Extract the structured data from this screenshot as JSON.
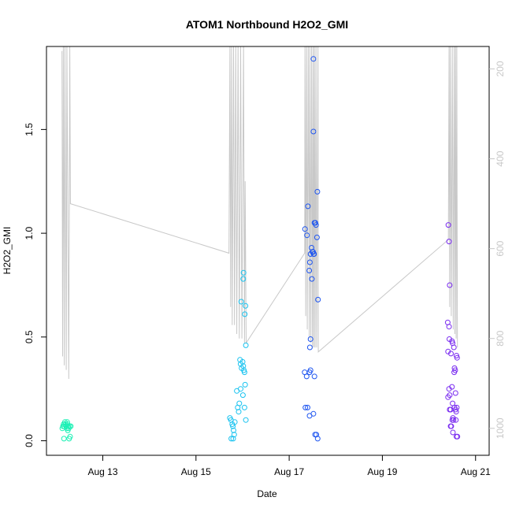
{
  "chart_data": {
    "type": "scatter",
    "title": "ATOM1 Northbound H2O2_GMI",
    "xlabel": "Date",
    "ylabel": "H2O2_GMI",
    "x_ticks": [
      "Aug 13",
      "Aug 15",
      "Aug 17",
      "Aug 19",
      "Aug 21"
    ],
    "y_ticks": [
      "0.0",
      "0.5",
      "1.0",
      "1.5"
    ],
    "y_right_ticks": [
      "200",
      "400",
      "600",
      "800",
      "1000"
    ],
    "xlim": [
      "2016-08-11T19:00",
      "2016-08-21T07:00"
    ],
    "ylim": [
      -0.07,
      1.9
    ],
    "y_right_lim": [
      1060,
      150
    ],
    "grid": false,
    "colors": {
      "cluster1": "#19f0b4",
      "cluster2": "#19c3f0",
      "cluster3": "#1e55f0",
      "cluster4": "#7a2cf0",
      "altitude_line": "#c8c8c8"
    },
    "series": [
      {
        "color": "cluster1",
        "points": [
          [
            "2016-08-12T03:10",
            0.06
          ],
          [
            "2016-08-12T03:30",
            0.07
          ],
          [
            "2016-08-12T03:50",
            0.08
          ],
          [
            "2016-08-12T04:10",
            0.07
          ],
          [
            "2016-08-12T04:30",
            0.09
          ],
          [
            "2016-08-12T04:50",
            0.08
          ],
          [
            "2016-08-12T05:10",
            0.07
          ],
          [
            "2016-08-12T05:30",
            0.06
          ],
          [
            "2016-08-12T05:50",
            0.08
          ],
          [
            "2016-08-12T06:10",
            0.07
          ],
          [
            "2016-08-12T06:30",
            0.06
          ],
          [
            "2016-08-12T06:50",
            0.07
          ],
          [
            "2016-08-12T07:10",
            0.02
          ],
          [
            "2016-08-12T04:00",
            0.01
          ],
          [
            "2016-08-12T06:40",
            0.01
          ],
          [
            "2016-08-12T05:40",
            0.09
          ],
          [
            "2016-08-12T06:00",
            0.05
          ],
          [
            "2016-08-12T07:30",
            0.07
          ]
        ]
      },
      {
        "color": "cluster2",
        "points": [
          [
            "2016-08-15T17:30",
            0.11
          ],
          [
            "2016-08-15T18:00",
            0.1
          ],
          [
            "2016-08-15T18:40",
            0.08
          ],
          [
            "2016-08-15T19:00",
            0.07
          ],
          [
            "2016-08-15T19:20",
            0.05
          ],
          [
            "2016-08-15T19:40",
            0.03
          ],
          [
            "2016-08-15T18:10",
            0.01
          ],
          [
            "2016-08-15T19:10",
            0.01
          ],
          [
            "2016-08-15T20:00",
            0.09
          ],
          [
            "2016-08-15T21:00",
            0.24
          ],
          [
            "2016-08-15T21:30",
            0.16
          ],
          [
            "2016-08-15T22:00",
            0.14
          ],
          [
            "2016-08-15T22:20",
            0.18
          ],
          [
            "2016-08-15T23:00",
            0.25
          ],
          [
            "2016-08-15T23:30",
            0.35
          ],
          [
            "2016-08-15T23:00",
            0.37
          ],
          [
            "2016-08-15T22:40",
            0.39
          ],
          [
            "2016-08-16T00:00",
            0.38
          ],
          [
            "2016-08-16T00:20",
            0.36
          ],
          [
            "2016-08-16T00:40",
            0.34
          ],
          [
            "2016-08-16T01:00",
            0.33
          ],
          [
            "2016-08-16T01:20",
            0.27
          ],
          [
            "2016-08-16T01:00",
            0.16
          ],
          [
            "2016-08-16T01:40",
            0.1
          ],
          [
            "2016-08-16T00:10",
            0.22
          ],
          [
            "2016-08-15T23:20",
            0.67
          ],
          [
            "2016-08-16T00:20",
            0.78
          ],
          [
            "2016-08-16T00:30",
            0.81
          ],
          [
            "2016-08-16T01:30",
            0.65
          ],
          [
            "2016-08-16T01:10",
            0.61
          ],
          [
            "2016-08-16T01:40",
            0.46
          ]
        ]
      },
      {
        "color": "cluster3",
        "points": [
          [
            "2016-08-17T08:10",
            1.02
          ],
          [
            "2016-08-17T09:10",
            0.99
          ],
          [
            "2016-08-17T09:40",
            1.13
          ],
          [
            "2016-08-17T10:20",
            0.82
          ],
          [
            "2016-08-17T10:40",
            0.86
          ],
          [
            "2016-08-17T11:00",
            0.9
          ],
          [
            "2016-08-17T11:30",
            0.93
          ],
          [
            "2016-08-17T12:00",
            0.91
          ],
          [
            "2016-08-17T12:20",
            0.91
          ],
          [
            "2016-08-17T12:40",
            0.9
          ],
          [
            "2016-08-17T12:50",
            0.9
          ],
          [
            "2016-08-17T13:00",
            1.05
          ],
          [
            "2016-08-17T13:30",
            1.05
          ],
          [
            "2016-08-17T13:50",
            1.04
          ],
          [
            "2016-08-17T14:20",
            0.98
          ],
          [
            "2016-08-17T14:30",
            1.2
          ],
          [
            "2016-08-17T14:50",
            0.68
          ],
          [
            "2016-08-17T11:40",
            0.78
          ],
          [
            "2016-08-17T12:30",
            1.49
          ],
          [
            "2016-08-17T12:30",
            1.84
          ],
          [
            "2016-08-17T11:00",
            0.49
          ],
          [
            "2016-08-17T10:40",
            0.45
          ],
          [
            "2016-08-17T08:00",
            0.33
          ],
          [
            "2016-08-17T09:00",
            0.31
          ],
          [
            "2016-08-17T10:30",
            0.33
          ],
          [
            "2016-08-17T11:00",
            0.34
          ],
          [
            "2016-08-17T13:00",
            0.31
          ],
          [
            "2016-08-17T08:20",
            0.16
          ],
          [
            "2016-08-17T09:30",
            0.16
          ],
          [
            "2016-08-17T10:30",
            0.12
          ],
          [
            "2016-08-17T12:30",
            0.13
          ],
          [
            "2016-08-17T13:20",
            0.03
          ],
          [
            "2016-08-17T14:00",
            0.03
          ],
          [
            "2016-08-17T14:40",
            0.01
          ]
        ]
      },
      {
        "color": "cluster4",
        "points": [
          [
            "2016-08-20T10:00",
            1.04
          ],
          [
            "2016-08-20T10:20",
            0.96
          ],
          [
            "2016-08-20T10:40",
            0.75
          ],
          [
            "2016-08-20T09:40",
            0.57
          ],
          [
            "2016-08-20T10:20",
            0.55
          ],
          [
            "2016-08-20T10:30",
            0.49
          ],
          [
            "2016-08-20T11:50",
            0.48
          ],
          [
            "2016-08-20T12:10",
            0.47
          ],
          [
            "2016-08-20T12:50",
            0.45
          ],
          [
            "2016-08-20T09:50",
            0.43
          ],
          [
            "2016-08-20T11:20",
            0.42
          ],
          [
            "2016-08-20T14:10",
            0.41
          ],
          [
            "2016-08-20T14:30",
            0.4
          ],
          [
            "2016-08-20T13:10",
            0.35
          ],
          [
            "2016-08-20T13:30",
            0.34
          ],
          [
            "2016-08-20T13:00",
            0.33
          ],
          [
            "2016-08-20T10:20",
            0.25
          ],
          [
            "2016-08-20T11:50",
            0.26
          ],
          [
            "2016-08-20T13:40",
            0.23
          ],
          [
            "2016-08-20T10:40",
            0.22
          ],
          [
            "2016-08-20T09:50",
            0.21
          ],
          [
            "2016-08-20T12:10",
            0.18
          ],
          [
            "2016-08-20T13:10",
            0.16
          ],
          [
            "2016-08-20T14:20",
            0.16
          ],
          [
            "2016-08-20T10:40",
            0.15
          ],
          [
            "2016-08-20T11:10",
            0.15
          ],
          [
            "2016-08-20T13:40",
            0.15
          ],
          [
            "2016-08-20T14:00",
            0.14
          ],
          [
            "2016-08-20T12:20",
            0.11
          ],
          [
            "2016-08-20T12:40",
            0.1
          ],
          [
            "2016-08-20T13:50",
            0.1
          ],
          [
            "2016-08-20T12:00",
            0.1
          ],
          [
            "2016-08-20T11:10",
            0.07
          ],
          [
            "2016-08-20T11:30",
            0.07
          ],
          [
            "2016-08-20T12:20",
            0.04
          ],
          [
            "2016-08-20T14:10",
            0.02
          ],
          [
            "2016-08-20T14:40",
            0.02
          ]
        ]
      }
    ],
    "altitude_profile": [
      [
        "2016-08-12T03:00",
        160
      ],
      [
        "2016-08-12T03:20",
        840
      ],
      [
        "2016-08-12T03:40",
        150
      ],
      [
        "2016-08-12T04:10",
        860
      ],
      [
        "2016-08-12T04:30",
        150
      ],
      [
        "2016-08-12T05:10",
        870
      ],
      [
        "2016-08-12T05:30",
        150
      ],
      [
        "2016-08-12T06:30",
        890
      ],
      [
        "2016-08-12T07:00",
        150
      ],
      [
        "2016-08-12T07:20",
        500
      ],
      [
        "2016-08-15T17:00",
        610
      ],
      [
        "2016-08-15T17:30",
        150
      ],
      [
        "2016-08-15T17:50",
        730
      ],
      [
        "2016-08-15T18:20",
        150
      ],
      [
        "2016-08-15T18:40",
        770
      ],
      [
        "2016-08-15T19:20",
        150
      ],
      [
        "2016-08-15T19:50",
        770
      ],
      [
        "2016-08-15T20:30",
        150
      ],
      [
        "2016-08-15T21:00",
        790
      ],
      [
        "2016-08-15T21:40",
        150
      ],
      [
        "2016-08-15T22:20",
        800
      ],
      [
        "2016-08-15T23:00",
        150
      ],
      [
        "2016-08-15T23:40",
        800
      ],
      [
        "2016-08-16T00:30",
        150
      ],
      [
        "2016-08-16T01:00",
        810
      ],
      [
        "2016-08-16T01:20",
        450
      ],
      [
        "2016-08-16T01:50",
        810
      ],
      [
        "2016-08-17T08:00",
        610
      ],
      [
        "2016-08-17T08:10",
        150
      ],
      [
        "2016-08-17T08:30",
        750
      ],
      [
        "2016-08-17T09:00",
        150
      ],
      [
        "2016-08-17T09:20",
        780
      ],
      [
        "2016-08-17T09:50",
        150
      ],
      [
        "2016-08-17T10:20",
        800
      ],
      [
        "2016-08-17T10:40",
        150
      ],
      [
        "2016-08-17T11:10",
        810
      ],
      [
        "2016-08-17T11:30",
        150
      ],
      [
        "2016-08-17T12:00",
        820
      ],
      [
        "2016-08-17T12:20",
        150
      ],
      [
        "2016-08-17T12:40",
        820
      ],
      [
        "2016-08-17T13:00",
        150
      ],
      [
        "2016-08-17T13:20",
        820
      ],
      [
        "2016-08-17T13:50",
        150
      ],
      [
        "2016-08-17T14:10",
        820
      ],
      [
        "2016-08-17T14:50",
        150
      ],
      [
        "2016-08-17T15:00",
        830
      ],
      [
        "2016-08-20T10:00",
        580
      ],
      [
        "2016-08-20T10:20",
        150
      ],
      [
        "2016-08-20T10:40",
        730
      ],
      [
        "2016-08-20T11:00",
        150
      ],
      [
        "2016-08-20T11:30",
        750
      ],
      [
        "2016-08-20T12:00",
        150
      ],
      [
        "2016-08-20T12:30",
        780
      ],
      [
        "2016-08-20T13:00",
        150
      ],
      [
        "2016-08-20T13:20",
        790
      ],
      [
        "2016-08-20T13:40",
        150
      ],
      [
        "2016-08-20T14:00",
        800
      ],
      [
        "2016-08-20T14:20",
        150
      ],
      [
        "2016-08-20T14:40",
        820
      ]
    ]
  }
}
